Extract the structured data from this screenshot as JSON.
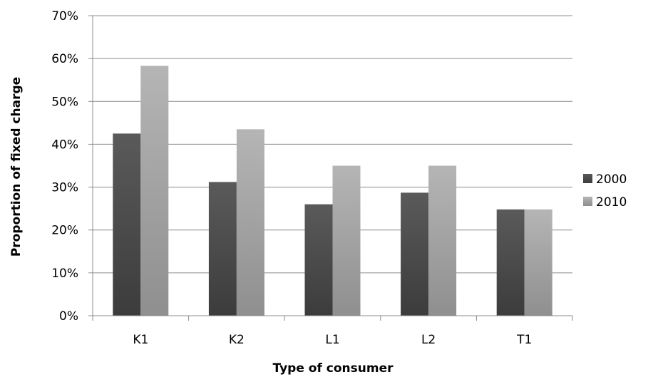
{
  "chart_data": {
    "type": "bar",
    "title": "",
    "xlabel": "Type of consumer",
    "ylabel": "Proportion of fixed charge",
    "categories": [
      "K1",
      "K2",
      "L1",
      "L2",
      "T1"
    ],
    "series": [
      {
        "name": "2000",
        "values": [
          42.5,
          31.2,
          26.0,
          28.7,
          24.8
        ]
      },
      {
        "name": "2010",
        "values": [
          58.3,
          43.5,
          35.0,
          35.0,
          24.8
        ]
      }
    ],
    "ylim": [
      0,
      70
    ],
    "y_ticks": [
      "0%",
      "10%",
      "20%",
      "30%",
      "40%",
      "50%",
      "60%",
      "70%"
    ],
    "y_tick_values": [
      0,
      10,
      20,
      30,
      40,
      50,
      60,
      70
    ],
    "grid": true,
    "legend_position": "right"
  },
  "colors": {
    "series_2000_top": "#5a5a5a",
    "series_2000_bottom": "#3c3c3c",
    "series_2010_top": "#b5b5b5",
    "series_2010_bottom": "#8f8f8f",
    "gridline": "#8c8c8c",
    "axis": "#8c8c8c"
  }
}
